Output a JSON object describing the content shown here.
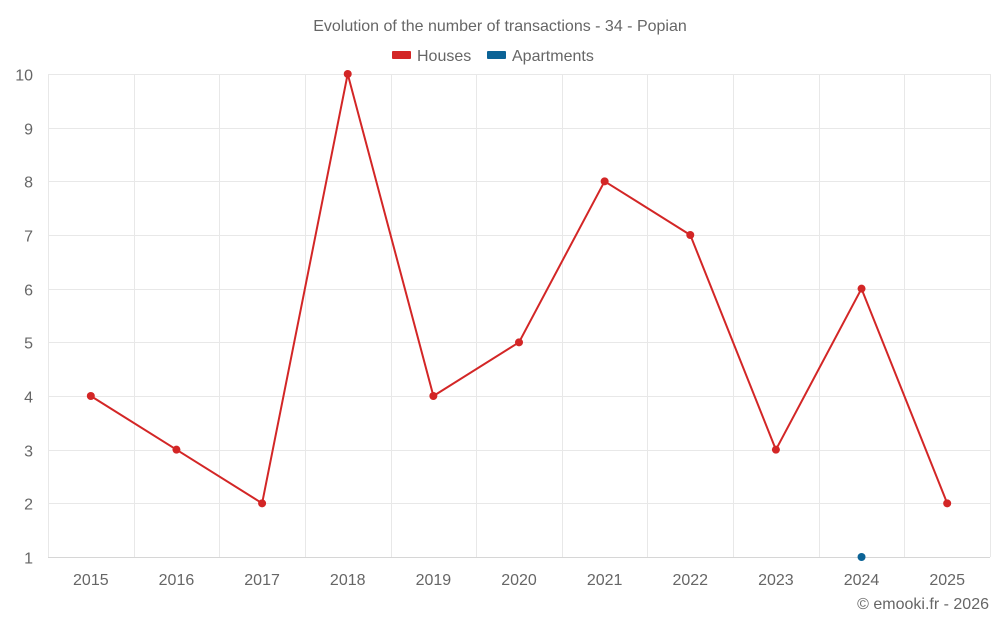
{
  "chart_data": {
    "type": "line",
    "title": "Evolution of the number of transactions - 34 - Popian",
    "categories": [
      "2015",
      "2016",
      "2017",
      "2018",
      "2019",
      "2020",
      "2021",
      "2022",
      "2023",
      "2024",
      "2025"
    ],
    "series": [
      {
        "name": "Houses",
        "color": "#d32626",
        "values": [
          4,
          3,
          2,
          10,
          4,
          5,
          8,
          7,
          3,
          6,
          2
        ]
      },
      {
        "name": "Apartments",
        "color": "#0b6396",
        "values": [
          null,
          null,
          null,
          null,
          null,
          null,
          null,
          null,
          null,
          1,
          null
        ]
      }
    ],
    "ylim": [
      1,
      10
    ],
    "yticks": [
      "1",
      "2",
      "3",
      "4",
      "5",
      "6",
      "7",
      "8",
      "9",
      "10"
    ],
    "xlabel": "",
    "ylabel": "",
    "grid": true,
    "legend_position": "top-center"
  },
  "credit": "© emooki.fr - 2026"
}
